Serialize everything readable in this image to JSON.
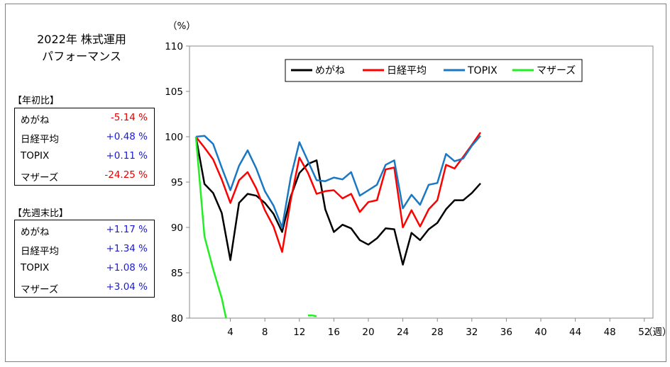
{
  "panel": {
    "title_line1": "2022年 株式運用",
    "title_line2": "パフォーマンス"
  },
  "ytd": {
    "heading": "【年初比】",
    "rows": [
      {
        "name": "めがね",
        "value": "-5.14 %",
        "sign": "neg"
      },
      {
        "name": "日経平均",
        "value": "+0.48 %",
        "sign": "pos"
      },
      {
        "name": "TOPIX",
        "value": "+0.11 %",
        "sign": "pos"
      },
      {
        "name": "マザーズ",
        "value": "-24.25 %",
        "sign": "neg"
      }
    ]
  },
  "wow": {
    "heading": "【先週末比】",
    "rows": [
      {
        "name": "めがね",
        "value": "+1.17 %",
        "sign": "pos"
      },
      {
        "name": "日経平均",
        "value": "+1.34 %",
        "sign": "pos"
      },
      {
        "name": "TOPIX",
        "value": "+1.08 %",
        "sign": "pos"
      },
      {
        "name": "マザーズ",
        "value": "+3.04 %",
        "sign": "pos"
      }
    ]
  },
  "colors": {
    "neg": "#e00000",
    "pos": "#1a1ad4"
  },
  "chart_data": {
    "type": "line",
    "y_unit_label": "（%）",
    "x_unit_label": "（週）",
    "xlim": [
      0,
      52
    ],
    "ylim": [
      80,
      110
    ],
    "x_ticks": [
      4,
      8,
      12,
      16,
      20,
      24,
      28,
      32,
      36,
      40,
      44,
      48,
      52
    ],
    "y_ticks": [
      80,
      85,
      90,
      95,
      100,
      105,
      110
    ],
    "grid": false,
    "legend_position": "top",
    "series": [
      {
        "name": "めがね",
        "color": "#000000",
        "x": [
          0,
          1,
          2,
          3,
          4,
          5,
          6,
          7,
          8,
          9,
          10,
          11,
          12,
          13,
          14,
          15,
          16,
          17,
          18,
          19,
          20,
          21,
          22,
          23,
          24,
          25,
          26,
          27,
          28,
          29,
          30,
          31,
          32,
          33
        ],
        "y": [
          100,
          94.8,
          93.8,
          91.6,
          86.4,
          92.7,
          93.7,
          93.5,
          92.7,
          91.5,
          89.5,
          93.4,
          96.0,
          97.0,
          97.4,
          92.0,
          89.5,
          90.3,
          89.9,
          88.6,
          88.1,
          88.8,
          89.9,
          89.8,
          85.9,
          89.4,
          88.6,
          89.8,
          90.5,
          92.0,
          93.0,
          93.0,
          93.8,
          94.86
        ]
      },
      {
        "name": "日経平均",
        "color": "#ff0000",
        "x": [
          0,
          1,
          2,
          3,
          4,
          5,
          6,
          7,
          8,
          9,
          10,
          11,
          12,
          13,
          14,
          15,
          16,
          17,
          18,
          19,
          20,
          21,
          22,
          23,
          24,
          25,
          26,
          27,
          28,
          29,
          30,
          31,
          32,
          33
        ],
        "y": [
          100,
          98.8,
          97.5,
          95.3,
          92.7,
          95.2,
          96.1,
          94.3,
          91.9,
          90.1,
          87.3,
          93.0,
          97.7,
          96.0,
          93.7,
          94.0,
          94.1,
          93.2,
          93.7,
          91.7,
          92.8,
          93.0,
          96.4,
          96.6,
          90.0,
          91.9,
          90.1,
          92.0,
          93.0,
          96.9,
          96.5,
          97.8,
          99.1,
          100.48
        ]
      },
      {
        "name": "TOPIX",
        "color": "#1a78c2",
        "x": [
          0,
          1,
          2,
          3,
          4,
          5,
          6,
          7,
          8,
          9,
          10,
          11,
          12,
          13,
          14,
          15,
          16,
          17,
          18,
          19,
          20,
          21,
          22,
          23,
          24,
          25,
          26,
          27,
          28,
          29,
          30,
          31,
          32,
          33
        ],
        "y": [
          100,
          100.1,
          99.2,
          96.6,
          94.1,
          96.8,
          98.5,
          96.5,
          94.0,
          92.4,
          90.0,
          95.5,
          99.4,
          97.3,
          95.2,
          95.1,
          95.5,
          95.3,
          96.1,
          93.5,
          94.1,
          94.7,
          96.9,
          97.4,
          92.1,
          93.6,
          92.5,
          94.7,
          94.9,
          98.1,
          97.3,
          97.6,
          99.0,
          100.11
        ]
      },
      {
        "name": "マザーズ",
        "color": "#22ee22",
        "x": [
          0,
          1,
          2,
          3,
          3.5
        ],
        "y": [
          100,
          89.0,
          85.4,
          82.2,
          80
        ],
        "x2": [
          13,
          13.5,
          14
        ],
        "y2": [
          80.3,
          80.3,
          80.2
        ]
      }
    ]
  }
}
